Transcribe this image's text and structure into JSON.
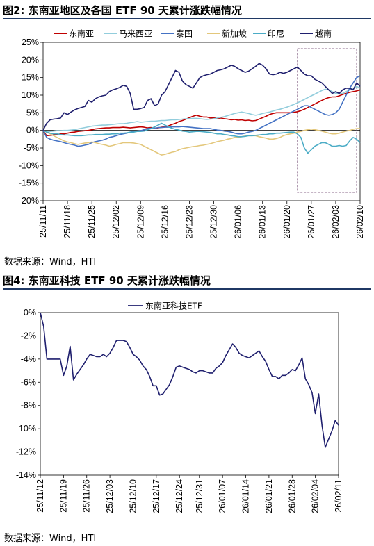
{
  "figures": [
    {
      "title": "图2:  东南亚地区及各国 ETF 90 天累计涨跌幅情况",
      "source": "数据来源：Wind，HTI"
    },
    {
      "title": "图4:  东南亚科技 ETF 90 天累计涨跌幅情况",
      "source": "数据来源：Wind，HTI"
    }
  ],
  "chart_data": [
    {
      "type": "line",
      "title": "",
      "xlabel": "",
      "ylabel": "",
      "ylim": [
        -20,
        25
      ],
      "yticks": [
        -20,
        -15,
        -10,
        -5,
        0,
        5,
        10,
        15,
        20,
        25
      ],
      "ytick_labels": [
        "-20%",
        "-15%",
        "-10%",
        "-5%",
        "0%",
        "5%",
        "10%",
        "15%",
        "20%",
        "25%"
      ],
      "x_tick_labels": [
        "25/11/11",
        "25/11/18",
        "25/11/25",
        "25/12/02",
        "25/12/09",
        "25/12/16",
        "25/12/23",
        "25/12/30",
        "26/01/06",
        "26/01/13",
        "26/01/20",
        "26/01/27",
        "26/02/03",
        "26/02/10"
      ],
      "x_count": 92,
      "grid": false,
      "legend_position": "top",
      "annotation": "dashed box highlighting 26/01/27 – 26/02/10",
      "series": [
        {
          "name": "东南亚",
          "color": "#c00000",
          "values": [
            0,
            -1.5,
            -1.4,
            -1.3,
            -1.2,
            -1.0,
            -1.0,
            -0.8,
            -0.6,
            -0.5,
            -0.3,
            -0.2,
            -0.1,
            0.0,
            0.2,
            0.4,
            0.5,
            0.6,
            0.7,
            0.7,
            0.8,
            0.8,
            0.8,
            0.9,
            0.8,
            0.7,
            0.8,
            0.9,
            1.0,
            0.9,
            0.7,
            0.8,
            0.6,
            0.7,
            0.9,
            1.0,
            1.3,
            1.7,
            2.0,
            2.5,
            2.8,
            3.2,
            3.6,
            4.0,
            4.3,
            4.0,
            3.8,
            3.8,
            3.5,
            3.6,
            3.4,
            3.5,
            3.3,
            3.2,
            3.0,
            3.1,
            2.9,
            3.0,
            2.8,
            2.9,
            2.7,
            2.8,
            3.2,
            3.6,
            4.0,
            4.5,
            4.8,
            5.0,
            5.0,
            5.0,
            5.0,
            5.0,
            5.1,
            5.3,
            5.6,
            6.0,
            6.5,
            7.0,
            7.5,
            8.0,
            8.5,
            9.0,
            9.3,
            9.5,
            9.5,
            9.8,
            10.2,
            10.5,
            10.8,
            11.0,
            11.2,
            11.5
          ]
        },
        {
          "name": "马来西亚",
          "color": "#92cddc",
          "values": [
            0,
            -0.5,
            -0.3,
            -0.2,
            -0.1,
            -0.1,
            0.0,
            0.0,
            0.1,
            0.2,
            0.4,
            0.6,
            0.8,
            1.0,
            1.2,
            1.3,
            1.4,
            1.5,
            1.5,
            1.6,
            1.7,
            1.8,
            1.9,
            1.9,
            2.0,
            2.2,
            2.3,
            2.5,
            2.3,
            2.4,
            2.5,
            2.6,
            2.6,
            2.7,
            2.8,
            2.8,
            2.9,
            3.0,
            3.0,
            3.1,
            3.2,
            3.3,
            3.3,
            3.4,
            3.4,
            3.3,
            3.2,
            3.1,
            3.2,
            3.3,
            3.5,
            3.7,
            3.9,
            4.2,
            4.5,
            4.8,
            5.0,
            5.2,
            5.0,
            4.8,
            4.5,
            4.3,
            4.5,
            4.8,
            5.0,
            5.2,
            5.5,
            5.8,
            6.0,
            6.3,
            6.6,
            7.0,
            7.4,
            7.8,
            8.3,
            8.8,
            9.3,
            9.8,
            10.3,
            10.8,
            11.3,
            11.7,
            11.5,
            11.0,
            10.5,
            10.5,
            10.5,
            11.0,
            11.5,
            12.0,
            12.5,
            12.0
          ]
        },
        {
          "name": "泰国",
          "color": "#4472c4",
          "values": [
            0,
            -2.0,
            -2.5,
            -2.8,
            -3.0,
            -3.2,
            -3.5,
            -3.8,
            -4.0,
            -4.2,
            -4.5,
            -4.4,
            -4.2,
            -4.0,
            -3.5,
            -3.2,
            -3.0,
            -2.8,
            -2.5,
            -2.0,
            -1.8,
            -1.5,
            -1.2,
            -1.0,
            -0.8,
            -0.5,
            -0.3,
            -0.2,
            -0.1,
            0.2,
            0.5,
            0.6,
            0.6,
            0.8,
            0.8,
            0.9,
            0.9,
            1.0,
            1.0,
            1.0,
            1.1,
            1.0,
            0.9,
            0.8,
            0.7,
            0.6,
            0.5,
            0.5,
            0.5,
            0.3,
            0.1,
            0.0,
            -0.2,
            -0.3,
            -0.5,
            -0.8,
            -1.0,
            -1.0,
            -0.8,
            -0.5,
            -0.3,
            0.0,
            0.5,
            1.0,
            1.5,
            2.0,
            2.5,
            3.0,
            3.5,
            4.0,
            4.5,
            5.0,
            5.5,
            6.0,
            6.5,
            7.0,
            7.0,
            6.5,
            6.0,
            5.5,
            5.0,
            4.5,
            4.3,
            4.5,
            5.0,
            6.0,
            8.0,
            10.0,
            12.0,
            13.5,
            15.0,
            15.5
          ]
        },
        {
          "name": "新加坡",
          "color": "#e3c77b",
          "values": [
            0,
            -0.5,
            -1.0,
            -1.5,
            -2.0,
            -2.5,
            -3.0,
            -3.3,
            -3.5,
            -3.8,
            -4.0,
            -3.8,
            -3.6,
            -3.5,
            -3.3,
            -3.5,
            -3.8,
            -4.0,
            -4.2,
            -4.5,
            -4.3,
            -4.0,
            -3.8,
            -3.5,
            -3.5,
            -3.5,
            -3.6,
            -3.8,
            -4.0,
            -4.5,
            -5.0,
            -5.5,
            -6.0,
            -6.5,
            -7.0,
            -6.8,
            -6.5,
            -6.2,
            -6.0,
            -5.5,
            -5.2,
            -5.0,
            -4.8,
            -4.6,
            -4.5,
            -4.3,
            -4.2,
            -4.0,
            -3.8,
            -3.5,
            -3.2,
            -3.0,
            -2.8,
            -2.5,
            -2.3,
            -2.0,
            -2.0,
            -1.8,
            -1.6,
            -1.5,
            -1.5,
            -1.5,
            -1.8,
            -2.0,
            -2.2,
            -2.5,
            -2.5,
            -2.3,
            -2.0,
            -1.5,
            -1.2,
            -1.0,
            -0.8,
            -0.5,
            -0.3,
            0.0,
            0.2,
            0.4,
            0.2,
            0.0,
            -0.2,
            -0.5,
            -0.8,
            -1.0,
            -1.0,
            -0.8,
            -0.5,
            -0.2,
            0.0,
            0.3,
            0.5,
            0.5
          ]
        },
        {
          "name": "印尼",
          "color": "#4bacc6",
          "values": [
            0,
            -0.5,
            -0.8,
            -1.0,
            -1.0,
            -1.2,
            -1.3,
            -1.3,
            -1.4,
            -1.5,
            -1.5,
            -1.5,
            -1.4,
            -1.3,
            -1.3,
            -1.2,
            -1.2,
            -1.2,
            -1.1,
            -1.1,
            -1.0,
            -1.0,
            -0.8,
            -0.8,
            -0.7,
            -0.5,
            -0.5,
            -0.3,
            -0.3,
            -0.2,
            0.2,
            0.5,
            1.0,
            1.5,
            2.0,
            1.5,
            1.0,
            0.6,
            0.3,
            0.1,
            -0.2,
            -0.3,
            -0.5,
            -0.4,
            -0.3,
            -0.3,
            -0.4,
            -0.5,
            -0.6,
            -0.8,
            -1.0,
            -1.0,
            -1.2,
            -1.3,
            -1.5,
            -1.6,
            -1.8,
            -1.8,
            -1.7,
            -1.5,
            -1.5,
            -1.4,
            -1.3,
            -1.2,
            -1.2,
            -1.0,
            -1.0,
            -0.8,
            -0.8,
            -0.7,
            -0.6,
            -0.5,
            -0.5,
            -1.0,
            -2.0,
            -5.0,
            -6.5,
            -5.5,
            -4.5,
            -4.0,
            -3.5,
            -3.5,
            -4.0,
            -4.5,
            -4.5,
            -4.3,
            -4.5,
            -4.3,
            -3.0,
            -2.0,
            -2.5,
            -3.5
          ]
        },
        {
          "name": "越南",
          "color": "#1f1f6e",
          "values": [
            0,
            2.0,
            3.0,
            3.2,
            3.3,
            3.5,
            5.0,
            4.5,
            5.2,
            5.8,
            6.2,
            6.5,
            6.8,
            8.5,
            8.0,
            9.0,
            9.5,
            9.8,
            10.0,
            11.0,
            11.5,
            11.8,
            12.2,
            12.8,
            12.5,
            10.5,
            6.0,
            6.0,
            6.2,
            6.5,
            8.5,
            9.0,
            7.0,
            7.5,
            10.0,
            11.0,
            13.0,
            15.0,
            17.0,
            16.5,
            14.0,
            13.0,
            12.5,
            12.0,
            13.5,
            15.0,
            15.5,
            15.8,
            16.0,
            16.5,
            17.0,
            17.2,
            17.5,
            18.0,
            18.5,
            18.2,
            17.5,
            17.0,
            16.5,
            16.8,
            17.5,
            18.2,
            19.0,
            18.5,
            17.5,
            16.0,
            15.8,
            16.0,
            16.5,
            16.2,
            16.5,
            17.0,
            17.5,
            18.0,
            17.0,
            16.0,
            15.5,
            15.5,
            14.5,
            14.0,
            13.5,
            12.5,
            11.5,
            10.5,
            11.0,
            10.5,
            11.5,
            12.0,
            12.0,
            11.5,
            13.5,
            12.5
          ]
        }
      ]
    },
    {
      "type": "line",
      "title": "",
      "xlabel": "",
      "ylabel": "",
      "ylim": [
        -14,
        0
      ],
      "yticks": [
        -14,
        -12,
        -10,
        -8,
        -6,
        -4,
        -2,
        0
      ],
      "ytick_labels": [
        "-14%",
        "-12%",
        "-10%",
        "-8%",
        "-6%",
        "-4%",
        "-2%",
        "0%"
      ],
      "x_tick_labels": [
        "25/11/12",
        "25/11/19",
        "25/11/26",
        "25/12/03",
        "25/12/10",
        "25/12/17",
        "25/12/24",
        "25/12/31",
        "26/01/07",
        "26/01/14",
        "26/01/21",
        "26/01/28",
        "26/02/04",
        "26/02/11"
      ],
      "x_count": 91,
      "grid": false,
      "legend_position": "top-left",
      "series": [
        {
          "name": "东南亚科技ETF",
          "color": "#1f1f6e",
          "values": [
            0,
            -1.2,
            -4.0,
            -4.0,
            -4.0,
            -4.0,
            -4.0,
            -5.4,
            -4.6,
            -2.9,
            -5.8,
            -5.3,
            -4.9,
            -4.5,
            -4.0,
            -3.6,
            -3.7,
            -3.8,
            -3.8,
            -3.6,
            -3.8,
            -3.5,
            -3.0,
            -2.4,
            -2.4,
            -2.4,
            -2.5,
            -3.0,
            -3.6,
            -3.8,
            -4.1,
            -4.6,
            -4.9,
            -5.5,
            -6.3,
            -6.3,
            -7.1,
            -7.0,
            -6.6,
            -6.2,
            -5.5,
            -4.7,
            -4.6,
            -4.7,
            -4.8,
            -4.9,
            -5.1,
            -5.2,
            -5.0,
            -5.0,
            -5.1,
            -5.2,
            -5.2,
            -4.8,
            -4.6,
            -4.3,
            -3.7,
            -3.2,
            -2.7,
            -3.0,
            -3.5,
            -3.7,
            -3.8,
            -3.9,
            -3.7,
            -3.5,
            -3.3,
            -3.8,
            -4.2,
            -4.9,
            -5.5,
            -5.5,
            -5.7,
            -5.4,
            -5.4,
            -5.2,
            -4.9,
            -5.0,
            -4.5,
            -3.9,
            -5.7,
            -6.2,
            -6.9,
            -8.7,
            -7.0,
            -9.7,
            -11.6,
            -10.9,
            -10.2,
            -9.3,
            -9.7
          ]
        }
      ]
    }
  ]
}
